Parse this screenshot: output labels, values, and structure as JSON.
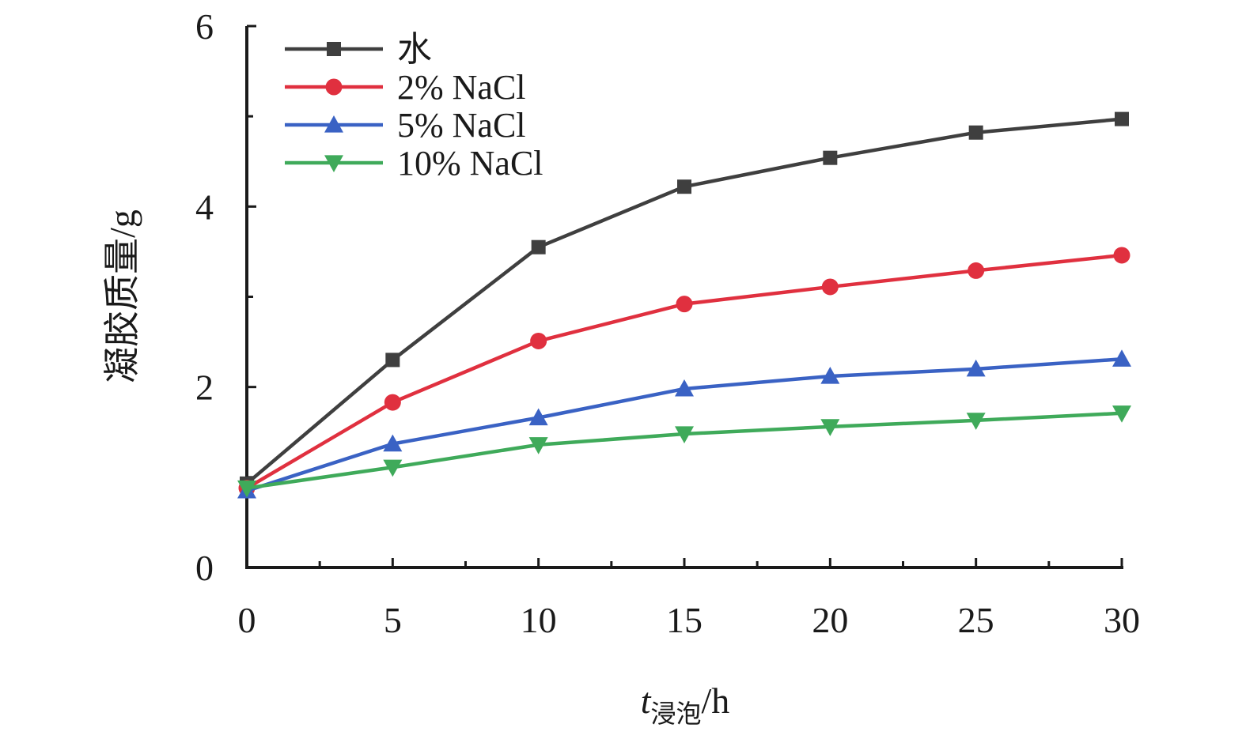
{
  "chart_data": {
    "type": "line",
    "title": "",
    "xlabel": {
      "main": "t",
      "sub": "浸泡",
      "unit": "/h"
    },
    "ylabel": "凝胶质量/g",
    "x": [
      0,
      5,
      10,
      15,
      20,
      25,
      30
    ],
    "xlim": [
      0,
      30
    ],
    "ylim": [
      0,
      6
    ],
    "xticks": [
      "0",
      "5",
      "10",
      "15",
      "20",
      "25",
      "30"
    ],
    "yticks": [
      "0",
      "2",
      "4",
      "6"
    ],
    "grid": false,
    "legend_position": "top-left",
    "series": [
      {
        "name": "水",
        "marker": "square",
        "color": "#3f3f3f",
        "values": [
          0.93,
          2.3,
          3.55,
          4.22,
          4.54,
          4.82,
          4.97
        ]
      },
      {
        "name": "2% NaCl",
        "marker": "circle",
        "color": "#e0303f",
        "values": [
          0.88,
          1.83,
          2.51,
          2.92,
          3.11,
          3.29,
          3.46
        ]
      },
      {
        "name": "5% NaCl",
        "marker": "triangle-up",
        "color": "#3a62c4",
        "values": [
          0.85,
          1.37,
          1.66,
          1.98,
          2.12,
          2.2,
          2.31
        ]
      },
      {
        "name": "10% NaCl",
        "marker": "triangle-down",
        "color": "#3faa5a",
        "values": [
          0.88,
          1.11,
          1.36,
          1.48,
          1.56,
          1.63,
          1.71
        ]
      }
    ]
  }
}
